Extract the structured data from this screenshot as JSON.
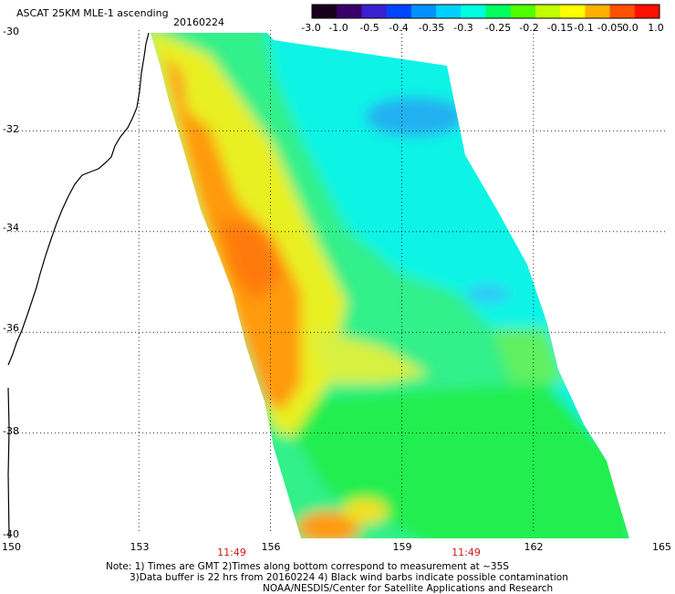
{
  "title": "ASCAT 25KM MLE-1 ascending",
  "date": "20160224",
  "colorbar": {
    "labels": [
      "-3.0",
      "-1.0",
      "-0.5",
      "-0.4",
      "-0.35",
      "-0.3",
      "-0.25",
      "-0.2",
      "-0.15",
      "-0.1",
      "-0.05",
      "0.0",
      "1.0"
    ],
    "colors": [
      "#1a001a",
      "#3a006a",
      "#3a20d0",
      "#0044ff",
      "#0090ff",
      "#00d0ff",
      "#00ffe0",
      "#00ff60",
      "#50ff00",
      "#c0ff00",
      "#ffff00",
      "#ffb000",
      "#ff5000",
      "#ff1000"
    ]
  },
  "axes": {
    "lat_labels": [
      "-30",
      "-32",
      "-34",
      "-36",
      "-38",
      "-40"
    ],
    "lon_labels": [
      "150",
      "153",
      "156",
      "159",
      "162",
      "165"
    ],
    "lat_range": [
      -40,
      -30
    ],
    "lon_range": [
      150,
      165
    ]
  },
  "times": [
    "11:49",
    "11:49"
  ],
  "notes": [
    "Note: 1) Times are GMT 2)Times along bottom correspond to measurement at ~35S",
    "3)Data buffer is 22 hrs from 20160224 4) Black wind barbs indicate possible contamination",
    "NOAA/NESDIS/Center for Satellite Applications and Research"
  ],
  "colors": {
    "background": "#ffffff",
    "gridline": "#000000",
    "time_label": "#cc1a1a"
  }
}
